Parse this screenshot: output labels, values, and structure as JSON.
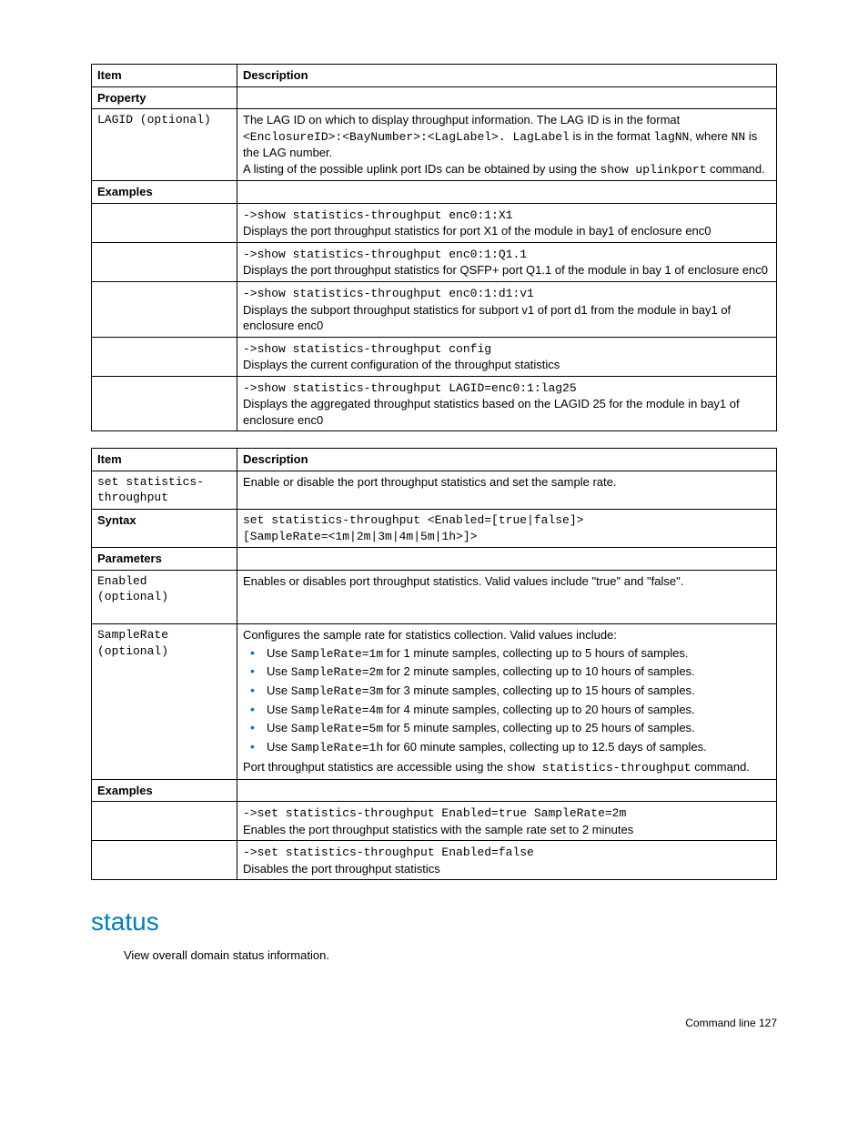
{
  "colors": {
    "accent": "#007dba",
    "bullet": "#0073cf",
    "border": "#000000",
    "text": "#000000"
  },
  "table1": {
    "header": {
      "col1": "Item",
      "col2": "Description"
    },
    "property_label": "Property",
    "lagid_item": "LAGID (optional)",
    "lagid_line1a": "The LAG ID on which to display throughput information. The LAG ID is in the format ",
    "lagid_fmt_pattern": "<EnclosureID>:<BayNumber>:<LagLabel>. LagLabel",
    "lagid_line1b": " is in the format ",
    "lagid_lagNN": "lagNN",
    "lagid_where": ", where ",
    "lagid_NN": "NN",
    "lagid_rest": " is the LAG number.",
    "lagid_line3a": "A listing of the possible uplink port IDs can be obtained by using the ",
    "lagid_show": "show uplinkport",
    "lagid_line3b": " command.",
    "examples_label": "Examples",
    "ex1_cmd": "->show statistics-throughput enc0:1:X1",
    "ex1_txt": "Displays the port throughput statistics for port X1 of the module in bay1 of enclosure enc0",
    "ex2_cmd": "->show statistics-throughput enc0:1:Q1.1",
    "ex2_txt": "Displays the port throughput statistics for QSFP+ port Q1.1 of the module in bay 1 of enclosure enc0",
    "ex3_cmd": "->show statistics-throughput enc0:1:d1:v1",
    "ex3_txt": "Displays the subport throughput statistics for subport v1 of port d1 from the module in bay1 of enclosure enc0",
    "ex4_cmd": "->show statistics-throughput config",
    "ex4_txt": "Displays the current configuration of the throughput statistics",
    "ex5_cmd": "->show statistics-throughput LAGID=enc0:1:lag25",
    "ex5_txt": "Displays the aggregated throughput statistics based on the LAGID 25 for the module in bay1 of enclosure enc0"
  },
  "table2": {
    "header": {
      "col1": "Item",
      "col2": "Description"
    },
    "set_item": "set statistics-throughput",
    "set_desc": "Enable or disable the port throughput statistics and set the sample rate.",
    "syntax_label": "Syntax",
    "syntax_line1": "set statistics-throughput <Enabled=[true|false]>",
    "syntax_line2": "[SampleRate=<1m|2m|3m|4m|5m|1h>]>",
    "params_label": "Parameters",
    "enabled_item1": "Enabled",
    "enabled_item2": "(optional)",
    "enabled_desc": "Enables or disables port throughput statistics. Valid values include \"true\" and \"false\".",
    "sr_item1": "SampleRate",
    "sr_item2": "(optional)",
    "sr_intro": "Configures the sample rate for statistics collection. Valid values include:",
    "sr_use": "Use ",
    "sr_b1_code": "SampleRate=1m",
    "sr_b1_txt": " for 1 minute samples, collecting up to 5 hours of samples.",
    "sr_b2_code": "SampleRate=2m",
    "sr_b2_txt": " for 2 minute samples, collecting up to 10 hours of samples.",
    "sr_b3_code": "SampleRate=3m",
    "sr_b3_txt": " for 3 minute samples, collecting up to 15 hours of samples.",
    "sr_b4_code": "SampleRate=4m",
    "sr_b4_txt": " for 4 minute samples, collecting up to 20 hours of samples.",
    "sr_b5_code": "SampleRate=5m",
    "sr_b5_txt": " for 5 minute samples, collecting up to 25 hours of samples.",
    "sr_b6_code": "SampleRate=1h",
    "sr_b6_txt": " for 60 minute samples, collecting up to 12.5 days of samples.",
    "sr_out_a": "Port throughput statistics are accessible using the ",
    "sr_out_code": "show statistics-throughput",
    "sr_out_b": " command.",
    "examples_label": "Examples",
    "ex1_cmd": "->set statistics-throughput Enabled=true SampleRate=2m",
    "ex1_txt": "Enables the port throughput statistics with the sample rate set to 2 minutes",
    "ex2_cmd": "->set statistics-throughput Enabled=false",
    "ex2_txt": "Disables the port throughput statistics"
  },
  "section_heading": "status",
  "section_body": "View overall domain status information.",
  "footer": "Command line   127"
}
